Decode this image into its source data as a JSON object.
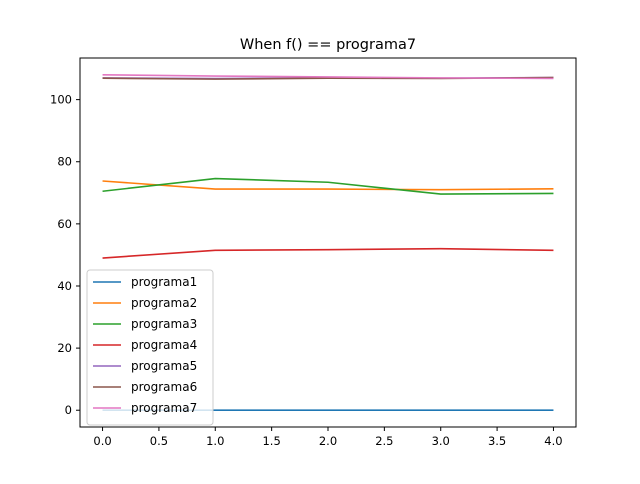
{
  "chart_data": {
    "type": "line",
    "title": "When f() == programa7",
    "xlabel": "",
    "ylabel": "",
    "xlim": [
      -0.2,
      4.2
    ],
    "ylim": [
      -5.4,
      113.4
    ],
    "x": [
      0,
      1,
      2,
      3,
      4
    ],
    "x_ticks": [
      0.0,
      0.5,
      1.0,
      1.5,
      2.0,
      2.5,
      3.0,
      3.5,
      4.0
    ],
    "x_tick_labels": [
      "0.0",
      "0.5",
      "1.0",
      "1.5",
      "2.0",
      "2.5",
      "3.0",
      "3.5",
      "4.0"
    ],
    "y_ticks": [
      0,
      20,
      40,
      60,
      80,
      100
    ],
    "y_tick_labels": [
      "0",
      "20",
      "40",
      "60",
      "80",
      "100"
    ],
    "grid": false,
    "legend_position": "lower-left",
    "series": [
      {
        "name": "programa1",
        "color": "#1f77b4",
        "values": [
          0,
          0,
          0,
          0,
          0
        ]
      },
      {
        "name": "programa2",
        "color": "#ff7f0e",
        "values": [
          73.8,
          71.2,
          71.2,
          71.0,
          71.3
        ]
      },
      {
        "name": "programa3",
        "color": "#2ca02c",
        "values": [
          70.5,
          74.6,
          73.4,
          69.6,
          69.8
        ]
      },
      {
        "name": "programa4",
        "color": "#d62728",
        "values": [
          49.0,
          51.5,
          51.7,
          52.0,
          51.5
        ]
      },
      {
        "name": "programa5",
        "color": "#9467bd",
        "values": [
          107.0,
          106.8,
          107.0,
          106.9,
          107.1
        ]
      },
      {
        "name": "programa6",
        "color": "#8c564b",
        "values": [
          106.9,
          106.6,
          106.9,
          106.8,
          107.1
        ]
      },
      {
        "name": "programa7",
        "color": "#e377c2",
        "values": [
          108.0,
          107.6,
          107.3,
          107.0,
          106.8
        ]
      }
    ]
  }
}
